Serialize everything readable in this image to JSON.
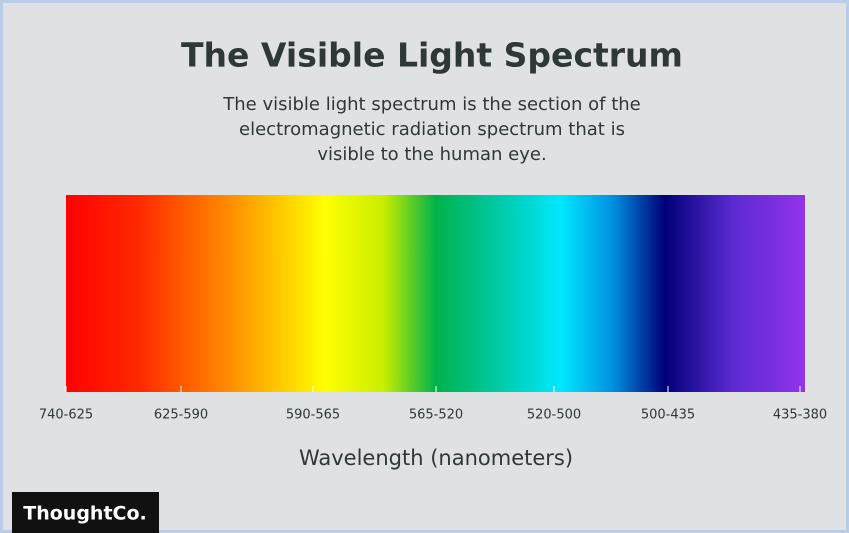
{
  "header": {
    "title": "The Visible Light Spectrum",
    "subtitle": [
      "The visible light spectrum is the section of the",
      "electromagnetic radiation spectrum that is",
      "visible to the human eye."
    ]
  },
  "spectrum": {
    "labels": [
      "740-625",
      "625-590",
      "590-565",
      "565-520",
      "520-500",
      "500-435",
      "435-380"
    ],
    "axis_label": "Wavelength (nanometers)"
  },
  "brand": "ThoughtCo."
}
